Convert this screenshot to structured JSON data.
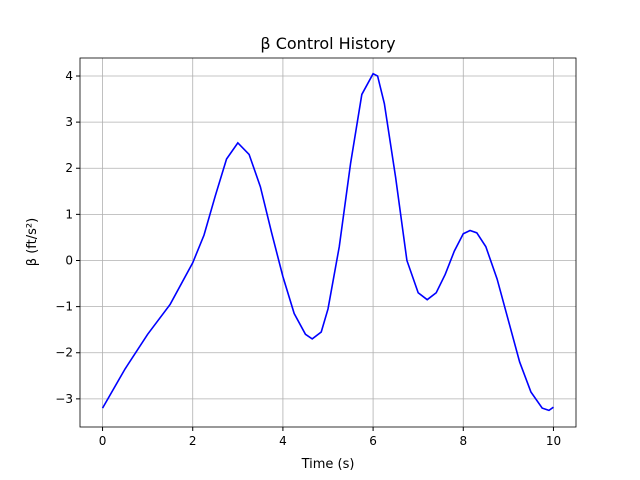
{
  "chart_data": {
    "type": "line",
    "title": "β Control History",
    "x_label": "Time (s)",
    "y_label": "β (ft/s²)",
    "x": [
      0,
      0.5,
      1.0,
      1.5,
      2.0,
      2.25,
      2.5,
      2.75,
      3.0,
      3.25,
      3.5,
      3.75,
      4.0,
      4.25,
      4.5,
      4.65,
      4.85,
      5.0,
      5.25,
      5.5,
      5.75,
      6.0,
      6.1,
      6.25,
      6.5,
      6.75,
      7.0,
      7.2,
      7.4,
      7.6,
      7.8,
      8.0,
      8.15,
      8.3,
      8.5,
      8.75,
      9.0,
      9.25,
      9.5,
      9.75,
      9.9,
      10.0
    ],
    "series": [
      {
        "name": "β",
        "color": "#0000ff",
        "values": [
          -3.2,
          -2.35,
          -1.6,
          -0.95,
          -0.05,
          0.55,
          1.4,
          2.2,
          2.55,
          2.3,
          1.6,
          0.6,
          -0.35,
          -1.15,
          -1.6,
          -1.7,
          -1.55,
          -1.05,
          0.3,
          2.1,
          3.6,
          4.05,
          4.0,
          3.4,
          1.8,
          0.0,
          -0.7,
          -0.85,
          -0.7,
          -0.3,
          0.2,
          0.58,
          0.65,
          0.6,
          0.3,
          -0.4,
          -1.3,
          -2.2,
          -2.85,
          -3.2,
          -3.25,
          -3.18
        ]
      }
    ],
    "xlim": [
      -0.5,
      10.5
    ],
    "ylim": [
      -3.61,
      4.39
    ],
    "xticks": [
      0,
      2,
      4,
      6,
      8,
      10
    ],
    "yticks": [
      {
        "value": -3,
        "label": "−3"
      },
      {
        "value": -2,
        "label": "−2"
      },
      {
        "value": -1,
        "label": "−1"
      },
      0,
      1,
      2,
      3,
      4
    ],
    "grid": true
  }
}
